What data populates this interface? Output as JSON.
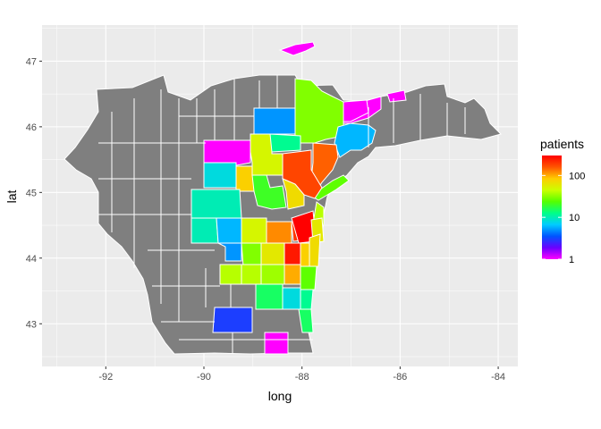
{
  "chart_data": {
    "type": "choropleth-map",
    "xlabel": "long",
    "ylabel": "lat",
    "xlim": [
      -93.3,
      -83.6
    ],
    "ylim": [
      42.35,
      47.55
    ],
    "x_ticks": [
      -92,
      -90,
      -88,
      -86,
      -84
    ],
    "x_tick_labels": [
      "-92",
      "-90",
      "-88",
      "-86",
      "-84"
    ],
    "y_ticks": [
      43,
      44,
      45,
      46,
      47
    ],
    "y_tick_labels": [
      "43",
      "44",
      "45",
      "46",
      "47"
    ],
    "grid": true,
    "legend": {
      "title": "patients",
      "position": "right",
      "scale": "log",
      "range": [
        1,
        300
      ],
      "breaks": [
        1,
        10,
        100
      ],
      "break_labels": [
        "1",
        "10",
        "100"
      ],
      "gradient": [
        "#ff00ff",
        "#6a00ff",
        "#0055ff",
        "#00ccff",
        "#00ff88",
        "#55ff00",
        "#ccff00",
        "#ffcc00",
        "#ff5500",
        "#ff0000"
      ]
    },
    "missing_color": "#7f7f7f",
    "regions": [
      {
        "id": "keweenaw",
        "patients": 1
      },
      {
        "id": "gogebic-area",
        "patients": 1
      },
      {
        "id": "dickinson",
        "patients": 5
      },
      {
        "id": "marquette",
        "patients": 30
      },
      {
        "id": "alger",
        "patients": 1
      },
      {
        "id": "delta",
        "patients": 6
      },
      {
        "id": "vilas",
        "patients": 1
      },
      {
        "id": "oneida",
        "patients": 1
      },
      {
        "id": "forest",
        "patients": 50
      },
      {
        "id": "florence",
        "patients": 12
      },
      {
        "id": "marinette",
        "patients": 150
      },
      {
        "id": "menominee-mi",
        "patients": 25
      },
      {
        "id": "lincoln",
        "patients": 8
      },
      {
        "id": "langlade",
        "patients": 80
      },
      {
        "id": "oconto",
        "patients": 180
      },
      {
        "id": "marathon",
        "patients": 10
      },
      {
        "id": "shawano",
        "patients": 20
      },
      {
        "id": "menominee",
        "patients": 70
      },
      {
        "id": "door",
        "patients": 40
      },
      {
        "id": "clark",
        "patients": 10
      },
      {
        "id": "portage",
        "patients": 50
      },
      {
        "id": "waupaca",
        "patients": 120
      },
      {
        "id": "outagamie",
        "patients": 200
      },
      {
        "id": "brown",
        "patients": 300
      },
      {
        "id": "kewaunee",
        "patients": 60
      },
      {
        "id": "juneau",
        "patients": 5
      },
      {
        "id": "wood",
        "patients": 6
      },
      {
        "id": "adams",
        "patients": 30
      },
      {
        "id": "waushara",
        "patients": 60
      },
      {
        "id": "winnebago",
        "patients": 250
      },
      {
        "id": "calumet",
        "patients": 80
      },
      {
        "id": "manitowoc",
        "patients": 70
      },
      {
        "id": "marquette-wi",
        "patients": 40
      },
      {
        "id": "green-lake",
        "patients": 35
      },
      {
        "id": "fond-du-lac",
        "patients": 100
      },
      {
        "id": "sheboygan",
        "patients": 25
      },
      {
        "id": "columbia",
        "patients": 40
      },
      {
        "id": "dodge",
        "patients": 15
      },
      {
        "id": "washington",
        "patients": 8
      },
      {
        "id": "ozaukee",
        "patients": 12
      },
      {
        "id": "dane",
        "patients": 3
      },
      {
        "id": "milwaukee",
        "patients": 15
      },
      {
        "id": "walworth",
        "patients": 1
      }
    ]
  }
}
